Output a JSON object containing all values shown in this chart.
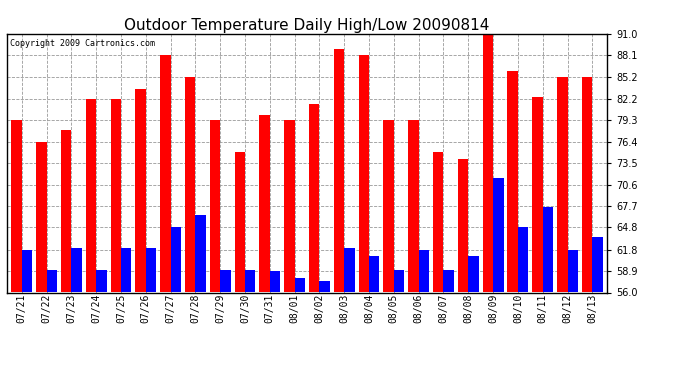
{
  "title": "Outdoor Temperature Daily High/Low 20090814",
  "copyright": "Copyright 2009 Cartronics.com",
  "dates": [
    "07/21",
    "07/22",
    "07/23",
    "07/24",
    "07/25",
    "07/26",
    "07/27",
    "07/28",
    "07/29",
    "07/30",
    "07/31",
    "08/01",
    "08/02",
    "08/03",
    "08/04",
    "08/05",
    "08/06",
    "08/07",
    "08/08",
    "08/09",
    "08/10",
    "08/11",
    "08/12",
    "08/13"
  ],
  "highs": [
    79.3,
    76.4,
    78.0,
    82.2,
    82.2,
    83.5,
    88.1,
    85.2,
    79.3,
    75.0,
    80.0,
    79.3,
    81.5,
    89.0,
    88.1,
    79.3,
    79.3,
    75.0,
    74.0,
    91.0,
    86.0,
    82.5,
    85.2,
    85.2
  ],
  "lows": [
    61.8,
    59.0,
    62.0,
    59.0,
    62.0,
    62.0,
    64.8,
    66.5,
    59.0,
    59.0,
    58.9,
    58.0,
    57.5,
    62.0,
    61.0,
    59.0,
    61.8,
    59.0,
    61.0,
    71.5,
    64.8,
    67.5,
    61.8,
    63.5
  ],
  "high_color": "#ff0000",
  "low_color": "#0000ff",
  "background_color": "#ffffff",
  "plot_bg_color": "#ffffff",
  "grid_color": "#999999",
  "y_ticks": [
    56.0,
    58.9,
    61.8,
    64.8,
    67.7,
    70.6,
    73.5,
    76.4,
    79.3,
    82.2,
    85.2,
    88.1,
    91.0
  ],
  "ylim": [
    56.0,
    91.0
  ],
  "bar_width": 0.42,
  "title_fontsize": 11,
  "tick_fontsize": 7,
  "copyright_fontsize": 6
}
